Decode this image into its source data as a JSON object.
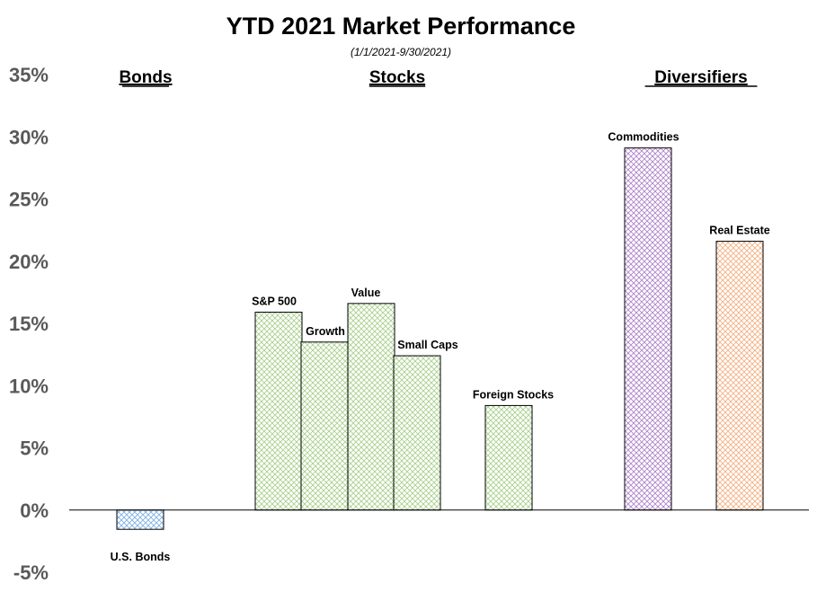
{
  "chart_data": {
    "type": "bar",
    "title": "YTD 2021 Market Performance",
    "subtitle": "(1/1/2021-9/30/2021)",
    "ylim": [
      -5,
      35
    ],
    "yticks": [
      {
        "value": 35,
        "label": "35%"
      },
      {
        "value": 30,
        "label": "30%"
      },
      {
        "value": 25,
        "label": "25%"
      },
      {
        "value": 20,
        "label": "20%"
      },
      {
        "value": 15,
        "label": "15%"
      },
      {
        "value": 10,
        "label": "10%"
      },
      {
        "value": 5,
        "label": "5%"
      },
      {
        "value": 0,
        "label": "0%"
      },
      {
        "value": -5,
        "label": "-5%"
      }
    ],
    "grid": false,
    "groups": [
      {
        "label": "Bonds"
      },
      {
        "label": "Stocks"
      },
      {
        "label": "Diversifiers"
      }
    ],
    "categories": [
      "U.S. Bonds",
      "S&P 500",
      "Growth",
      "Value",
      "Small Caps",
      "Foreign Stocks",
      "Commodities",
      "Real Estate"
    ],
    "values": [
      -1.55,
      15.9,
      13.5,
      16.6,
      12.4,
      8.4,
      29.1,
      21.6
    ],
    "colors": [
      "#7fb2e5",
      "#a9d18e",
      "#a9d18e",
      "#a9d18e",
      "#a9d18e",
      "#a9d18e",
      "#b084cc",
      "#f4b183"
    ]
  }
}
